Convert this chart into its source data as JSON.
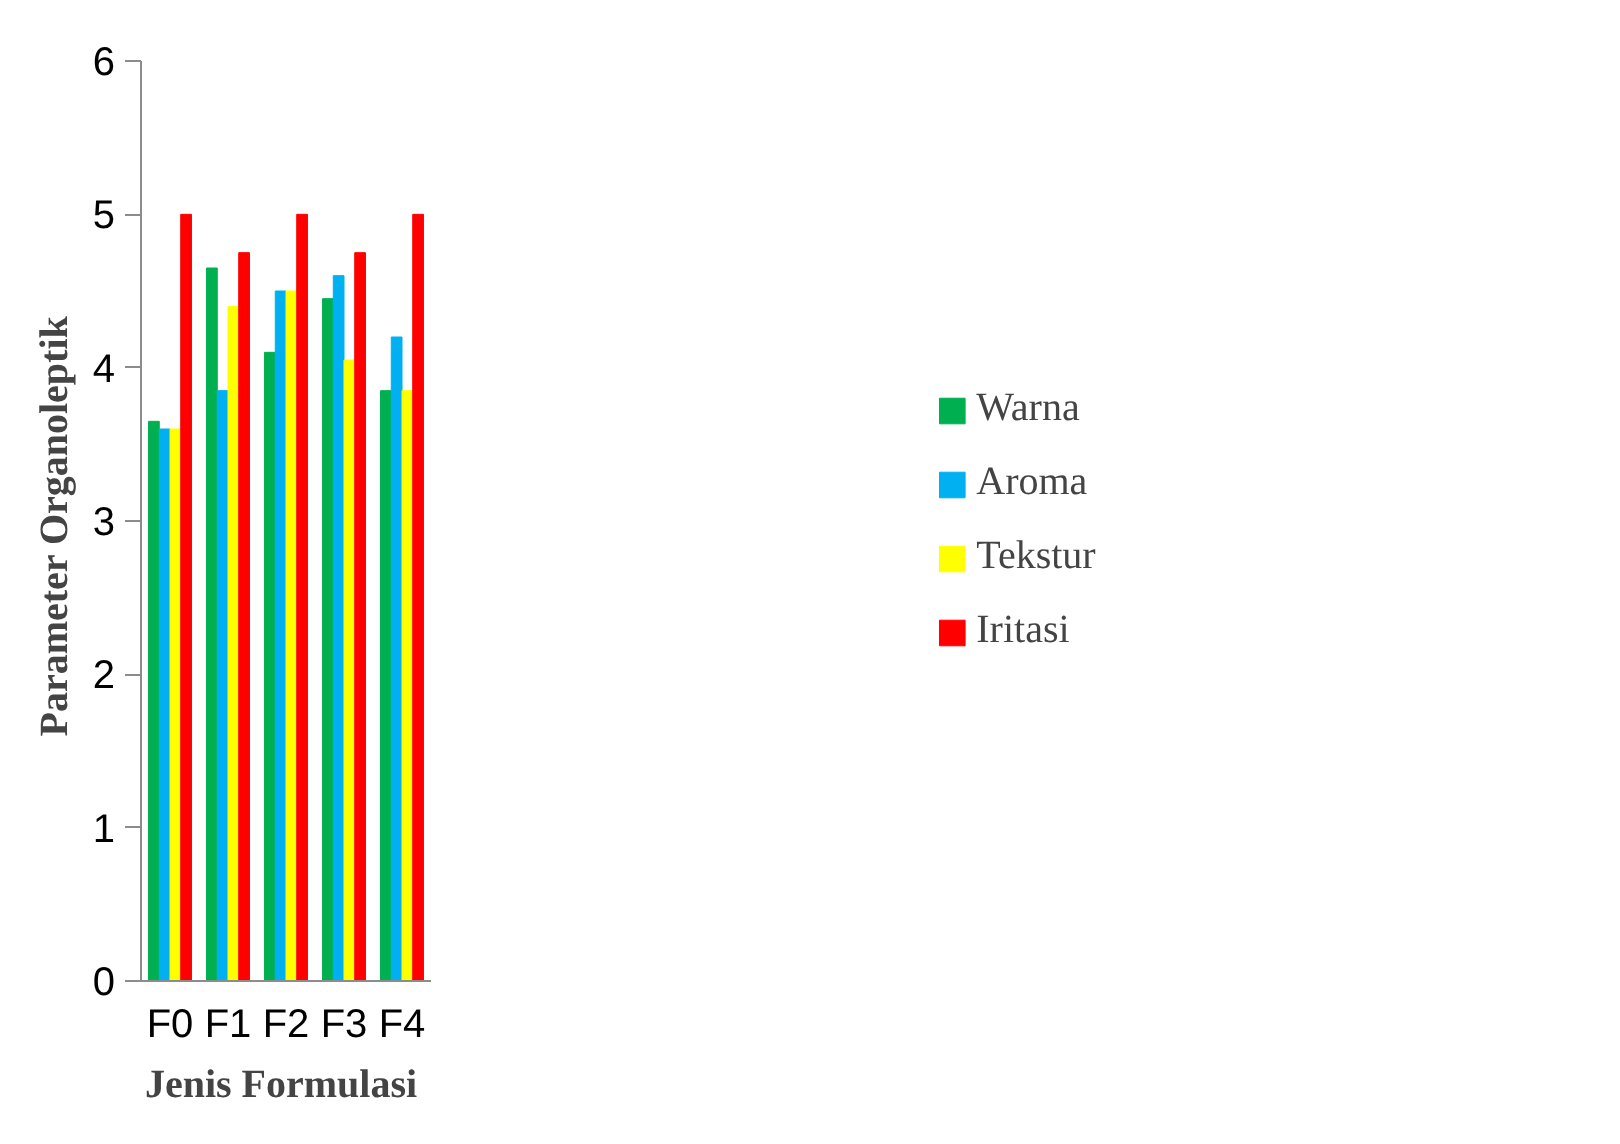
{
  "chart_data": {
    "type": "bar",
    "xlabel": "Jenis  Formulasi",
    "ylabel": "Parameter  Organoleptik",
    "categories": [
      "F0",
      "F1",
      "F2",
      "F3",
      "F4"
    ],
    "series": [
      {
        "name": "Warna",
        "color": "#00b050",
        "values": [
          3.65,
          4.65,
          4.1,
          4.45,
          3.85
        ]
      },
      {
        "name": "Aroma",
        "color": "#00b0f0",
        "values": [
          3.6,
          3.85,
          4.5,
          4.6,
          4.2
        ]
      },
      {
        "name": "Tekstur",
        "color": "#ffff00",
        "values": [
          3.6,
          4.4,
          4.5,
          4.05,
          3.85
        ]
      },
      {
        "name": "Iritasi",
        "color": "#ff0000",
        "values": [
          5,
          4.75,
          5,
          4.75,
          5
        ]
      }
    ],
    "ylim": [
      0,
      6
    ],
    "yticks": [
      0,
      1,
      2,
      3,
      4,
      5,
      6
    ],
    "grid": false,
    "legend": "right"
  }
}
